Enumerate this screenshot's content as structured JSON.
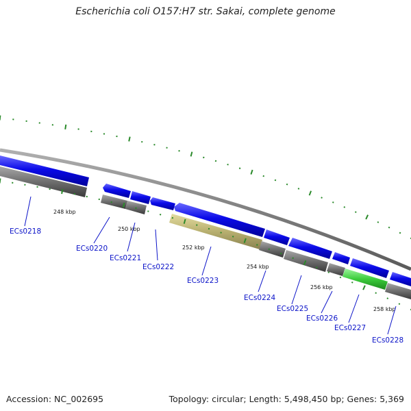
{
  "title": "Escherichia coli O157:H7 str. Sakai, complete genome",
  "footer": {
    "accession": "Accession: NC_002695",
    "summary": "Topology: circular; Length: 5,498,450 bp; Genes: 5,369"
  },
  "colors": {
    "cds": "#0a0ae8",
    "gene": "#6e6e6e",
    "pseudo_gene": "#b8b070",
    "rna_gene": "#3ccc3c",
    "backbone": "#8a8a8a",
    "ticks": "#2a8a2a",
    "label": "#0a12c8"
  },
  "scale_ticks": [
    "248 kbp",
    "250 kbp",
    "252 kbp",
    "254 kbp",
    "256 kbp",
    "258 kbp"
  ],
  "gene_labels": [
    "ECs0218",
    "ECs0220",
    "ECs0221",
    "ECs0222",
    "ECs0223",
    "ECs0224",
    "ECs0225",
    "ECs0226",
    "ECs0227",
    "ECs0228"
  ]
}
